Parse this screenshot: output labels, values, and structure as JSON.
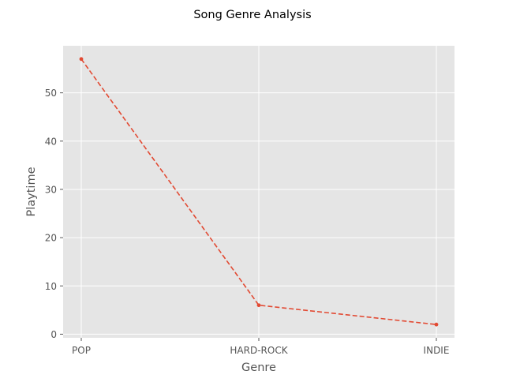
{
  "chart_data": {
    "type": "line",
    "title": "Song Genre Analysis",
    "xlabel": "Genre",
    "ylabel": "Playtime",
    "categories": [
      "POP",
      "HARD-ROCK",
      "INDIE"
    ],
    "series": [
      {
        "values": [
          57,
          6,
          2
        ],
        "color": "#e24a33",
        "line_style": "dashed",
        "marker": "point"
      }
    ],
    "ylim": [
      -0.75,
      59.75
    ],
    "yticks": [
      0,
      10,
      20,
      30,
      40,
      50
    ],
    "ytick_labels": [
      "0",
      "10",
      "20",
      "30",
      "40",
      "50"
    ],
    "grid": true,
    "legend": "none",
    "style": {
      "plot_background": "#e5e5e5",
      "grid_color": "#ffffff",
      "text_color": "#555555"
    }
  }
}
